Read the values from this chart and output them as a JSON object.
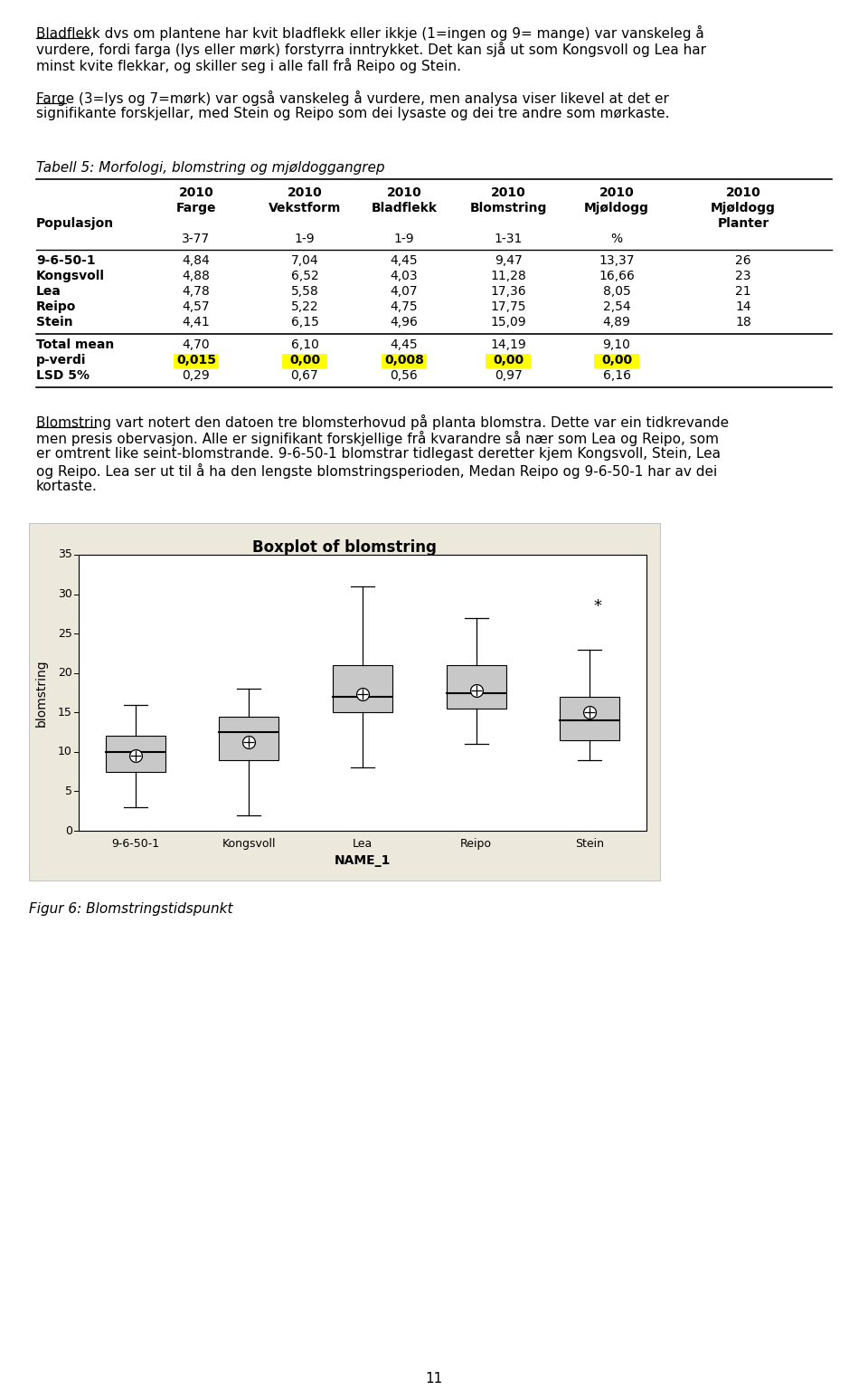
{
  "page_background": "#ffffff",
  "page_number": "11",
  "table_title": "Tabell 5: Morfologi, blomstring og mjøldoggangrep",
  "col_headers_row1": [
    "2010",
    "2010",
    "2010",
    "2010",
    "2010",
    "2010"
  ],
  "col_headers_row2": [
    "Farge",
    "Vekstform",
    "Bladflekk",
    "Blomstring",
    "Mjøldogg",
    "Mjøldogg"
  ],
  "col_headers_row3_left": "Populasjon",
  "col_headers_row3_right": "Planter",
  "col_headers_row4": [
    "3-77",
    "1-9",
    "1-9",
    "1-31",
    "%",
    ""
  ],
  "table_rows": [
    [
      "9-6-50-1",
      "4,84",
      "7,04",
      "4,45",
      "9,47",
      "13,37",
      "26"
    ],
    [
      "Kongsvoll",
      "4,88",
      "6,52",
      "4,03",
      "11,28",
      "16,66",
      "23"
    ],
    [
      "Lea",
      "4,78",
      "5,58",
      "4,07",
      "17,36",
      "8,05",
      "21"
    ],
    [
      "Reipo",
      "4,57",
      "5,22",
      "4,75",
      "17,75",
      "2,54",
      "14"
    ],
    [
      "Stein",
      "4,41",
      "6,15",
      "4,96",
      "15,09",
      "4,89",
      "18"
    ]
  ],
  "total_mean_row": [
    "Total mean",
    "4,70",
    "6,10",
    "4,45",
    "14,19",
    "9,10",
    ""
  ],
  "p_verdi_row": [
    "p-verdi",
    "0,015",
    "0,00",
    "0,008",
    "0,00",
    "0,00",
    ""
  ],
  "lsd_row": [
    "LSD 5%",
    "0,29",
    "0,67",
    "0,56",
    "0,97",
    "6,16",
    ""
  ],
  "boxplot_title": "Boxplot of blomstring",
  "boxplot_xlabel": "NAME_1",
  "boxplot_ylabel": "blomstring",
  "boxplot_categories": [
    "9-6-50-1",
    "Kongsvoll",
    "Lea",
    "Reipo",
    "Stein"
  ],
  "boxplot_bg": "#ede8dc",
  "boxplot_data": {
    "9-6-50-1": {
      "q1": 7.5,
      "median": 10.0,
      "q3": 12.0,
      "whisker_low": 3.0,
      "whisker_high": 16.0,
      "mean": 9.47,
      "outliers": []
    },
    "Kongsvoll": {
      "q1": 9.0,
      "median": 12.5,
      "q3": 14.5,
      "whisker_low": 2.0,
      "whisker_high": 18.0,
      "mean": 11.28,
      "outliers": []
    },
    "Lea": {
      "q1": 15.0,
      "median": 17.0,
      "q3": 21.0,
      "whisker_low": 8.0,
      "whisker_high": 31.0,
      "mean": 17.36,
      "outliers": []
    },
    "Reipo": {
      "q1": 15.5,
      "median": 17.5,
      "q3": 21.0,
      "whisker_low": 11.0,
      "whisker_high": 27.0,
      "mean": 17.75,
      "outliers": []
    },
    "Stein": {
      "q1": 11.5,
      "median": 14.0,
      "q3": 17.0,
      "whisker_low": 9.0,
      "whisker_high": 23.0,
      "mean": 15.09,
      "outliers": [
        28.5
      ]
    }
  },
  "boxplot_yticks": [
    0,
    5,
    10,
    15,
    20,
    25,
    30,
    35
  ],
  "figure_caption": "Figur 6: Blomstringstidspunkt",
  "font_family": "DejaVu Sans",
  "body_fontsize": 11,
  "table_fontsize": 10,
  "highlight_color": "#ffff00",
  "box_fill_color": "#c8c8c8",
  "box_edge_color": "#000000"
}
